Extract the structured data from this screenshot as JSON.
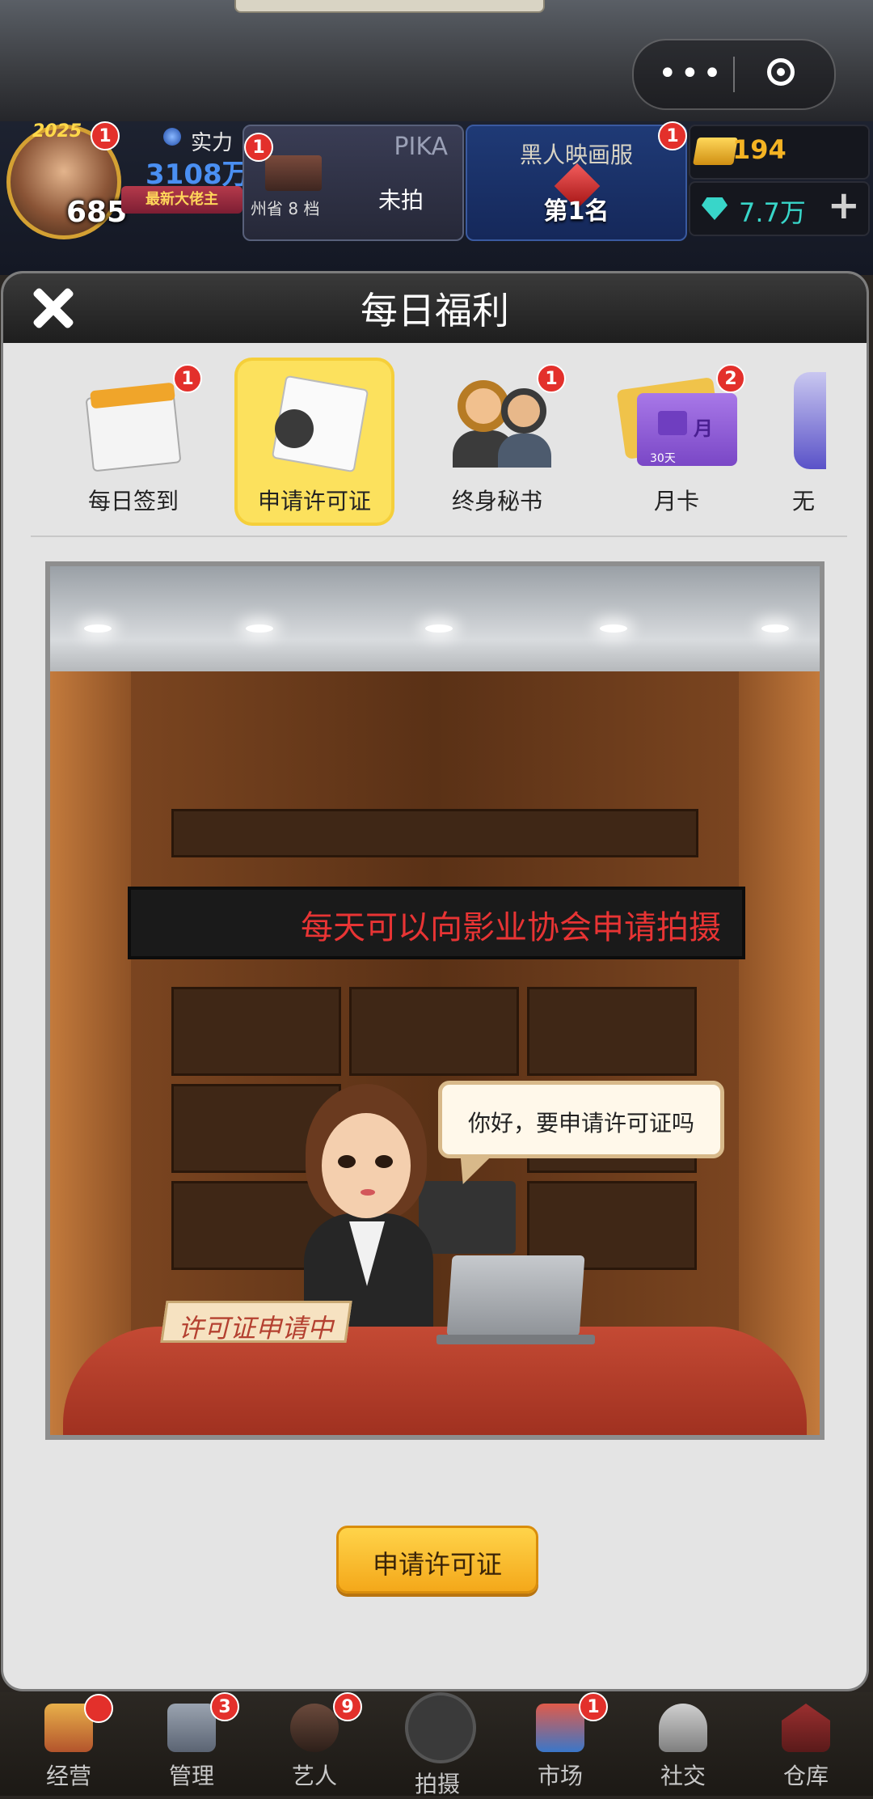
{
  "hud": {
    "avatar_year": "2025",
    "level": "685",
    "power_label": "实力",
    "power_value": "3108万",
    "rank_ribbon": "最新大佬主",
    "avatar_badge": "1",
    "pika_card": {
      "badge": "1",
      "title": "PIKA",
      "sub": "州省 8 档",
      "status": "未拍"
    },
    "theater_card": {
      "badge": "1",
      "name": "黑人映画服",
      "rank": "第1名"
    },
    "gold": "194",
    "diamond": "7.7万",
    "plus_label": "+"
  },
  "modal": {
    "title": "每日福利",
    "tabs": [
      {
        "label": "每日签到",
        "badge": "1",
        "icon": "calendar-icon"
      },
      {
        "label": "申请许可证",
        "badge": "",
        "icon": "license-icon",
        "active": true
      },
      {
        "label": "终身秘书",
        "badge": "1",
        "icon": "secretary-icon"
      },
      {
        "label": "月卡",
        "badge": "2",
        "icon": "month-card-icon",
        "card_text": "月",
        "days": "30天"
      },
      {
        "label": "无",
        "badge": "",
        "icon": "partial-tab-icon"
      }
    ],
    "scene": {
      "led_text": "每天可以向影业协会申请拍摄",
      "bubble_text": "你好，要申请许可证吗",
      "nameplate_text": "许可证申请中"
    },
    "apply_button": "申请许可证"
  },
  "bottom_nav": [
    {
      "label": "经营",
      "badge": ""
    },
    {
      "label": "管理",
      "badge": "3"
    },
    {
      "label": "艺人",
      "badge": "9"
    },
    {
      "label": "拍摄",
      "badge": ""
    },
    {
      "label": "市场",
      "badge": "1"
    },
    {
      "label": "社交",
      "badge": ""
    },
    {
      "label": "仓库",
      "badge": ""
    }
  ],
  "colors": {
    "accent_yellow": "#fce15d",
    "badge_red": "#e3302b",
    "gold_text": "#f4b323",
    "diamond_text": "#38d6c9",
    "led_text": "#e83434"
  }
}
